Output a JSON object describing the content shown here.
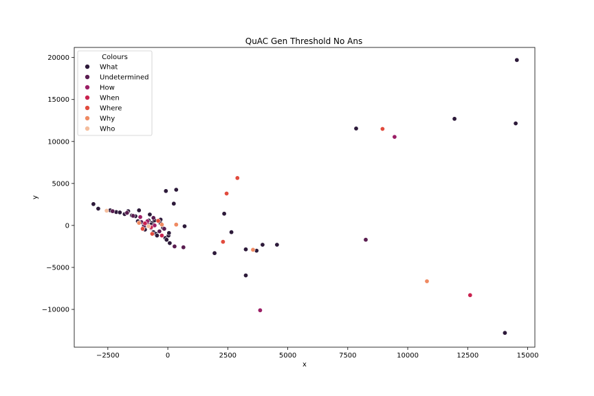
{
  "chart_data": {
    "type": "scatter",
    "title": "QuAC Gen Threshold No Ans",
    "xlabel": "x",
    "ylabel": "y",
    "xlim": [
      -3900,
      15300
    ],
    "ylim": [
      -14500,
      21200
    ],
    "xticks": [
      -2500,
      0,
      2500,
      5000,
      7500,
      10000,
      12500,
      15000
    ],
    "yticks": [
      -10000,
      -5000,
      0,
      5000,
      10000,
      15000,
      20000
    ],
    "xtick_labels": [
      "−2500",
      "0",
      "2500",
      "5000",
      "7500",
      "10000",
      "12500",
      "15000"
    ],
    "ytick_labels": [
      "−10000",
      "−5000",
      "0",
      "5000",
      "10000",
      "15000",
      "20000"
    ],
    "grid": false,
    "legend": {
      "title": "Colours",
      "placement": "top-left"
    },
    "series": [
      {
        "name": "What",
        "color": "#2d1a3a",
        "points": [
          [
            14550,
            19700
          ],
          [
            11950,
            12700
          ],
          [
            14500,
            12150
          ],
          [
            7850,
            11550
          ],
          [
            -3100,
            2550
          ],
          [
            -2900,
            2000
          ],
          [
            -2400,
            1800
          ],
          [
            -2150,
            1600
          ],
          [
            -2000,
            1550
          ],
          [
            -1800,
            1350
          ],
          [
            -1650,
            1700
          ],
          [
            -1500,
            1200
          ],
          [
            -1350,
            1100
          ],
          [
            -1250,
            500
          ],
          [
            -1200,
            1800
          ],
          [
            -1050,
            300
          ],
          [
            -950,
            -500
          ],
          [
            -900,
            0
          ],
          [
            -800,
            600
          ],
          [
            -750,
            1300
          ],
          [
            -650,
            300
          ],
          [
            -600,
            -800
          ],
          [
            -550,
            600
          ],
          [
            -500,
            -1000
          ],
          [
            -450,
            -1200
          ],
          [
            -300,
            700
          ],
          [
            -200,
            -300
          ],
          [
            -100,
            -1500
          ],
          [
            -50,
            -1700
          ],
          [
            30,
            -1200
          ],
          [
            80,
            -2100
          ],
          [
            50,
            -900
          ],
          [
            -80,
            4100
          ],
          [
            250,
            2600
          ],
          [
            350,
            4250
          ],
          [
            700,
            -100
          ],
          [
            2350,
            1400
          ],
          [
            2650,
            -800
          ],
          [
            3250,
            -2850
          ],
          [
            3700,
            -3000
          ],
          [
            3950,
            -2300
          ],
          [
            4550,
            -2300
          ],
          [
            3250,
            -5950
          ],
          [
            1950,
            -3300
          ],
          [
            14050,
            -12800
          ],
          [
            -300,
            250
          ],
          [
            -700,
            100
          ]
        ]
      },
      {
        "name": "Undetermined",
        "color": "#5a1e51",
        "points": [
          [
            -2300,
            1700
          ],
          [
            -1700,
            1500
          ],
          [
            -1450,
            1150
          ],
          [
            -1100,
            400
          ],
          [
            -850,
            200
          ],
          [
            -700,
            -300
          ],
          [
            -350,
            -700
          ],
          [
            -150,
            -400
          ],
          [
            280,
            -2500
          ],
          [
            650,
            -2600
          ],
          [
            8250,
            -1700
          ],
          [
            -1000,
            -100
          ],
          [
            -600,
            900
          ]
        ]
      },
      {
        "name": "How",
        "color": "#9b1f66",
        "points": [
          [
            9450,
            10550
          ],
          [
            3850,
            -10100
          ],
          [
            -1150,
            1000
          ],
          [
            -850,
            500
          ],
          [
            -550,
            0
          ]
        ]
      },
      {
        "name": "When",
        "color": "#c9224f",
        "points": [
          [
            12600,
            -8300
          ],
          [
            -950,
            250
          ],
          [
            -700,
            -200
          ],
          [
            -250,
            -1200
          ]
        ]
      },
      {
        "name": "Where",
        "color": "#e14b3d",
        "points": [
          [
            8950,
            11500
          ],
          [
            2900,
            5650
          ],
          [
            2450,
            3800
          ],
          [
            2300,
            -1950
          ],
          [
            -650,
            -1000
          ],
          [
            -1050,
            -400
          ],
          [
            -400,
            550
          ]
        ]
      },
      {
        "name": "Why",
        "color": "#ef8a62",
        "points": [
          [
            10800,
            -6650
          ],
          [
            3550,
            -2900
          ],
          [
            350,
            100
          ],
          [
            -1200,
            300
          ],
          [
            -250,
            100
          ]
        ]
      },
      {
        "name": "Who",
        "color": "#f4bd9d",
        "points": [
          [
            -2550,
            1750
          ],
          [
            -800,
            -100
          ]
        ]
      }
    ]
  }
}
